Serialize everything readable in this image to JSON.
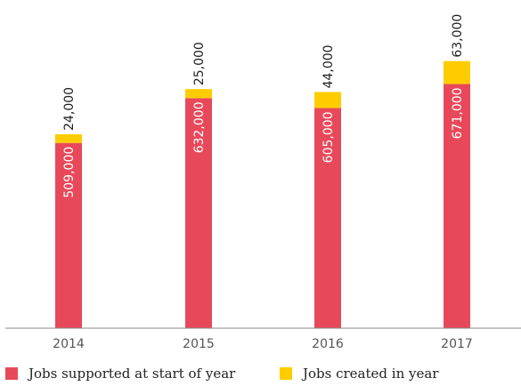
{
  "chart_data": {
    "type": "bar",
    "stacked": true,
    "categories": [
      "2014",
      "2015",
      "2016",
      "2017"
    ],
    "series": [
      {
        "name": "Jobs supported at start of year",
        "values": [
          509000,
          632000,
          605000,
          671000
        ],
        "labels": [
          "509,000",
          "632,000",
          "605,000",
          "671,000"
        ],
        "color": "#e8495a"
      },
      {
        "name": "Jobs created in year",
        "values": [
          24000,
          25000,
          44000,
          63000
        ],
        "labels": [
          "24,000",
          "25,000",
          "44,000",
          "63,000"
        ],
        "color": "#ffcc00"
      }
    ],
    "title": "",
    "xlabel": "",
    "ylabel": "",
    "ylim": [
      0,
      870000
    ],
    "grid": false,
    "legend_position": "bottom-left"
  },
  "colors": {
    "axis": "#888888",
    "text": "#222222",
    "tick_text": "#555555",
    "inner_label": "#ffffff"
  }
}
